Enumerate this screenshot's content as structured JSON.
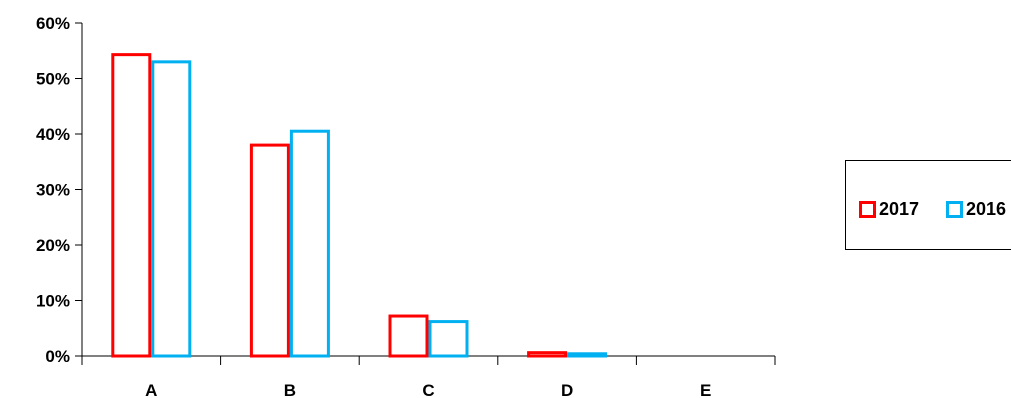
{
  "chart_data": {
    "type": "bar",
    "categories": [
      "A",
      "B",
      "C",
      "D",
      "E"
    ],
    "series": [
      {
        "name": "2017",
        "color": "#ff0000",
        "values": [
          54.3,
          38.0,
          7.2,
          0.6,
          0.0
        ]
      },
      {
        "name": "2016",
        "color": "#00b0f0",
        "values": [
          53.0,
          40.5,
          6.2,
          0.4,
          0.0
        ]
      }
    ],
    "ylim": [
      0,
      60
    ],
    "yticks": [
      "0%",
      "10%",
      "20%",
      "30%",
      "40%",
      "50%",
      "60%"
    ],
    "title": "",
    "xlabel": "",
    "ylabel": "",
    "grid": false,
    "legend_position": "right"
  }
}
